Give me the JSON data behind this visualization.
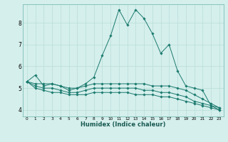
{
  "title": "",
  "xlabel": "Humidex (Indice chaleur)",
  "ylabel": "",
  "bg_color": "#d5efec",
  "grid_color": "#b8ddd9",
  "line_color": "#1a7a6e",
  "xlim": [
    -0.5,
    23.5
  ],
  "ylim": [
    3.7,
    8.85
  ],
  "yticks": [
    4,
    5,
    6,
    7,
    8
  ],
  "xticks": [
    0,
    1,
    2,
    3,
    4,
    5,
    6,
    7,
    8,
    9,
    10,
    11,
    12,
    13,
    14,
    15,
    16,
    17,
    18,
    19,
    20,
    21,
    22,
    23
  ],
  "series": [
    [
      5.3,
      5.6,
      5.1,
      5.2,
      5.1,
      4.9,
      5.0,
      5.2,
      5.5,
      6.5,
      7.4,
      8.6,
      7.9,
      8.6,
      8.2,
      7.5,
      6.6,
      7.0,
      5.8,
      5.1,
      5.0,
      4.9,
      4.2,
      4.1
    ],
    [
      5.3,
      5.2,
      5.2,
      5.2,
      5.1,
      5.0,
      5.0,
      5.1,
      5.2,
      5.2,
      5.2,
      5.2,
      5.2,
      5.2,
      5.2,
      5.1,
      5.1,
      5.1,
      5.0,
      4.9,
      4.7,
      4.5,
      4.3,
      4.1
    ],
    [
      5.3,
      5.1,
      5.0,
      5.0,
      4.9,
      4.8,
      4.8,
      4.9,
      5.0,
      5.0,
      5.0,
      5.0,
      5.0,
      5.0,
      4.9,
      4.9,
      4.8,
      4.8,
      4.7,
      4.6,
      4.4,
      4.3,
      4.2,
      4.0
    ],
    [
      5.3,
      5.0,
      4.9,
      4.8,
      4.8,
      4.7,
      4.7,
      4.7,
      4.8,
      4.8,
      4.8,
      4.8,
      4.8,
      4.7,
      4.7,
      4.7,
      4.6,
      4.6,
      4.5,
      4.4,
      4.3,
      4.2,
      4.1,
      4.0
    ]
  ]
}
